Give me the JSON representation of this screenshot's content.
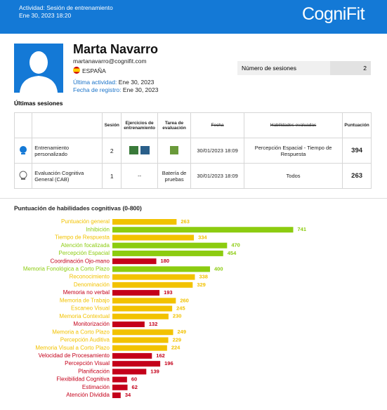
{
  "header": {
    "activity": "Actividad: Sesión de entrenamiento",
    "date": "Ene 30, 2023 18:20",
    "logo": "CogniFit"
  },
  "profile": {
    "name": "Marta Navarro",
    "email": "martanavarro@cognifit.com",
    "country": "ESPAÑA",
    "last_activity_label": "Última actividad:",
    "last_activity": "Ene 30, 2023",
    "registration_label": "Fecha de registro:",
    "registration": "Ene 30, 2023",
    "sessions_label": "Número de sesiones",
    "sessions": 2
  },
  "sessions": {
    "title": "Últimas sesiones",
    "columns": [
      "Sesión",
      "Ejercicios de entrenamiento",
      "Tarea de evaluación",
      "Fecha",
      "Habilidades evaluadas",
      "Puntuación"
    ],
    "rows": [
      {
        "name": "Entrenamiento personalizado",
        "session": 2,
        "date": "30/01/2023 18:09",
        "skills": "Percepción Espacial - Tiempo de Respuesta",
        "score": 394
      },
      {
        "name": "Evaluación Cognitiva General (CAB)",
        "session": 1,
        "exercises": "--",
        "task": "Batería de pruebas",
        "date": "30/01/2023 18:09",
        "skills": "Todos",
        "score": 263
      }
    ]
  },
  "chart_data": {
    "type": "bar",
    "orientation": "horizontal",
    "title": "Puntuación de habilidades cognitivas (0-800)",
    "categories": [
      "Puntuación general",
      "Inhibición",
      "Tiempo de Respuesta",
      "Atención focalizada",
      "Percepción Espacial",
      "Coordinación Ojo-mano",
      "Memoria Fonológica a Corto Plazo",
      "Reconocimiento",
      "Denominación",
      "Memoria no verbal",
      "Memoria de Trabajo",
      "Escaneo Visual",
      "Memoria Contextual",
      "Monitorización",
      "Memoria a Corto Plazo",
      "Percepción Auditiva",
      "Memoria Visual a Corto Plazo",
      "Velocidad de Procesamiento",
      "Percepción Visual",
      "Planificación",
      "Flexibilidad Cognitiva",
      "Estimación",
      "Atención Dividida"
    ],
    "values": [
      263,
      741,
      334,
      470,
      454,
      180,
      400,
      338,
      329,
      193,
      260,
      245,
      230,
      132,
      249,
      229,
      224,
      162,
      196,
      139,
      60,
      62,
      34
    ],
    "colors": [
      "#f2c200",
      "#8ccc10",
      "#f2c200",
      "#8ccc10",
      "#8ccc10",
      "#c4001a",
      "#8ccc10",
      "#f2c200",
      "#f2c200",
      "#c4001a",
      "#f2c200",
      "#f2c200",
      "#f2c200",
      "#c4001a",
      "#f2c200",
      "#f2c200",
      "#f2c200",
      "#c4001a",
      "#c4001a",
      "#c4001a",
      "#c4001a",
      "#c4001a",
      "#c4001a"
    ],
    "xlim": [
      0,
      800
    ]
  }
}
